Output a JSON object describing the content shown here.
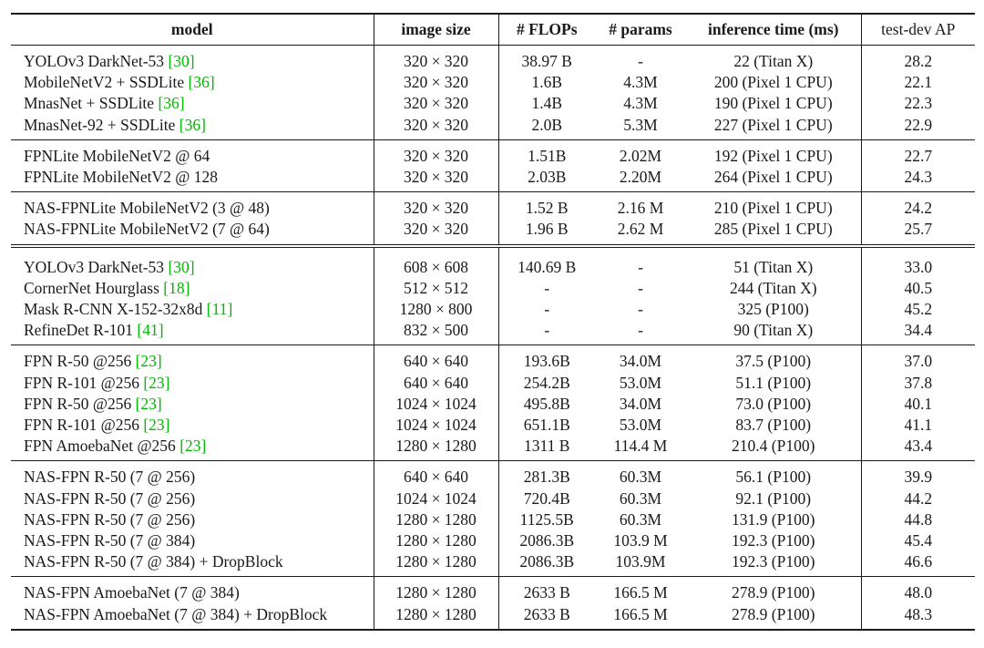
{
  "headers": {
    "model": "model",
    "image_size": "image size",
    "flops": "# FLOPs",
    "params": "# params",
    "inference_time": "inference time (ms)",
    "test_dev_ap": "test-dev AP"
  },
  "groups": [
    [
      {
        "model": "YOLOv3 DarkNet-53 ",
        "cite": "[30]",
        "size": "320 × 320",
        "flops": "38.97 B",
        "params": "-",
        "time": "22 (Titan X)",
        "ap": "28.2"
      },
      {
        "model": "MobileNetV2 + SSDLite ",
        "cite": "[36]",
        "size": "320 × 320",
        "flops": "1.6B",
        "params": "4.3M",
        "time": "200 (Pixel 1 CPU)",
        "ap": "22.1"
      },
      {
        "model": "MnasNet + SSDLite ",
        "cite": "[36]",
        "size": "320 × 320",
        "flops": "1.4B",
        "params": "4.3M",
        "time": "190 (Pixel 1 CPU)",
        "ap": "22.3"
      },
      {
        "model": "MnasNet-92 + SSDLite ",
        "cite": "[36]",
        "size": "320 × 320",
        "flops": "2.0B",
        "params": "5.3M",
        "time": "227 (Pixel 1 CPU)",
        "ap": "22.9"
      }
    ],
    [
      {
        "model": "FPNLite MobileNetV2  @ 64",
        "cite": "",
        "size": "320 × 320",
        "flops": "1.51B",
        "params": "2.02M",
        "time": "192 (Pixel 1 CPU)",
        "ap": "22.7"
      },
      {
        "model": "FPNLite MobileNetV2  @ 128",
        "cite": "",
        "size": "320 × 320",
        "flops": "2.03B",
        "params": "2.20M",
        "time": "264 (Pixel 1 CPU)",
        "ap": "24.3"
      }
    ],
    [
      {
        "model": "NAS-FPNLite MobileNetV2 (3 @ 48)",
        "cite": "",
        "size": "320 × 320",
        "flops": "1.52 B",
        "params": "2.16 M",
        "time": "210 (Pixel 1 CPU)",
        "ap": "24.2"
      },
      {
        "model": "NAS-FPNLite MobileNetV2 (7 @ 64)",
        "cite": "",
        "size": "320 × 320",
        "flops": "1.96 B",
        "params": "2.62 M",
        "time": "285 (Pixel 1 CPU)",
        "ap": "25.7"
      }
    ],
    [
      {
        "model": "YOLOv3 DarkNet-53 ",
        "cite": "[30]",
        "size": "608 × 608",
        "flops": "140.69 B",
        "params": "-",
        "time": "51 (Titan X)",
        "ap": "33.0"
      },
      {
        "model": "CornerNet Hourglass ",
        "cite": "[18]",
        "size": "512 × 512",
        "flops": "-",
        "params": "-",
        "time": "244 (Titan X)",
        "ap": "40.5"
      },
      {
        "model": "Mask R-CNN X-152-32x8d ",
        "cite": "[11]",
        "size": "1280 × 800",
        "flops": "-",
        "params": "-",
        "time": "325 (P100)",
        "ap": "45.2"
      },
      {
        "model": "RefineDet R-101 ",
        "cite": "[41]",
        "size": "832 × 500",
        "flops": "-",
        "params": "-",
        "time": "90 (Titan X)",
        "ap": "34.4"
      }
    ],
    [
      {
        "model": "FPN R-50 @256 ",
        "cite": "[23]",
        "size": "640 × 640",
        "flops": "193.6B",
        "params": "34.0M",
        "time": "37.5 (P100)",
        "ap": "37.0"
      },
      {
        "model": "FPN R-101 @256 ",
        "cite": "[23]",
        "size": "640 × 640",
        "flops": "254.2B",
        "params": "53.0M",
        "time": "51.1 (P100)",
        "ap": "37.8"
      },
      {
        "model": "FPN R-50 @256 ",
        "cite": "[23]",
        "size": "1024 × 1024",
        "flops": "495.8B",
        "params": "34.0M",
        "time": "73.0 (P100)",
        "ap": "40.1"
      },
      {
        "model": "FPN R-101 @256 ",
        "cite": "[23]",
        "size": "1024 × 1024",
        "flops": "651.1B",
        "params": "53.0M",
        "time": "83.7 (P100)",
        "ap": "41.1"
      },
      {
        "model": "FPN AmoebaNet @256 ",
        "cite": "[23]",
        "size": "1280 × 1280",
        "flops": "1311 B",
        "params": "114.4 M",
        "time": "210.4 (P100)",
        "ap": "43.4"
      }
    ],
    [
      {
        "model": "NAS-FPN R-50 (7 @ 256)",
        "cite": "",
        "size": "640 × 640",
        "flops": "281.3B",
        "params": "60.3M",
        "time": "56.1 (P100)",
        "ap": "39.9"
      },
      {
        "model": "NAS-FPN R-50 (7 @ 256)",
        "cite": "",
        "size": "1024 × 1024",
        "flops": "720.4B",
        "params": "60.3M",
        "time": "92.1 (P100)",
        "ap": "44.2"
      },
      {
        "model": "NAS-FPN R-50 (7 @ 256)",
        "cite": "",
        "size": "1280 × 1280",
        "flops": "1125.5B",
        "params": "60.3M",
        "time": "131.9 (P100)",
        "ap": "44.8"
      },
      {
        "model": "NAS-FPN R-50 (7 @ 384)",
        "cite": "",
        "size": "1280 × 1280",
        "flops": "2086.3B",
        "params": "103.9 M",
        "time": "192.3 (P100)",
        "ap": "45.4"
      },
      {
        "model": "NAS-FPN R-50 (7 @ 384) + DropBlock",
        "cite": "",
        "size": "1280 × 1280",
        "flops": "2086.3B",
        "params": "103.9M",
        "time": "192.3 (P100)",
        "ap": "46.6"
      }
    ],
    [
      {
        "model": "NAS-FPN AmoebaNet (7 @ 384)",
        "cite": "",
        "size": "1280 × 1280",
        "flops": "2633 B",
        "params": "166.5 M",
        "time": "278.9 (P100)",
        "ap": "48.0"
      },
      {
        "model": "NAS-FPN AmoebaNet (7 @ 384) + DropBlock",
        "cite": "",
        "size": "1280 × 1280",
        "flops": "2633 B",
        "params": "166.5 M",
        "time": "278.9 (P100)",
        "ap": "48.3"
      }
    ]
  ]
}
